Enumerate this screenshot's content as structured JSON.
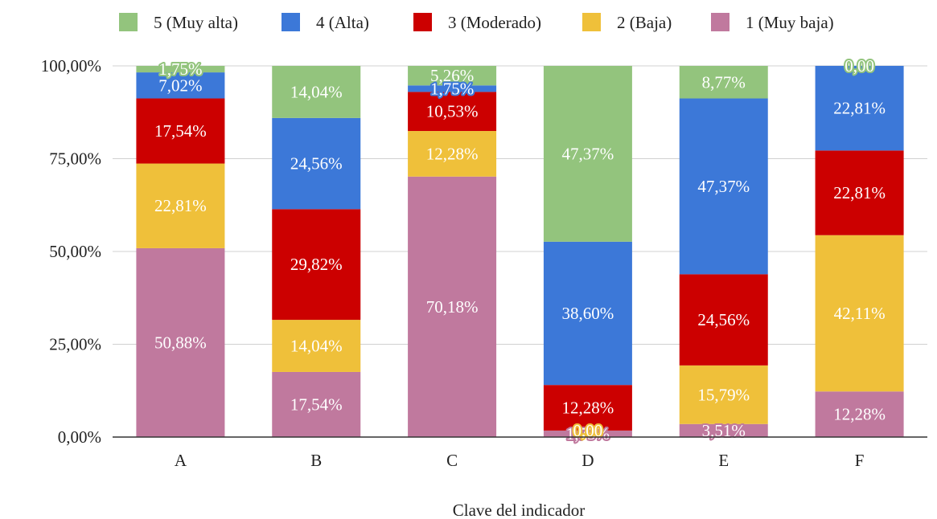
{
  "chart_data": {
    "type": "bar",
    "stacked": true,
    "normalized": true,
    "xlabel": "Clave del indicador",
    "ylabel": "",
    "ylim": [
      0,
      100
    ],
    "y_ticks": [
      "0,00%",
      "25,00%",
      "50,00%",
      "75,00%",
      "100,00%"
    ],
    "grid": true,
    "legend_position": "top",
    "categories": [
      "A",
      "B",
      "C",
      "D",
      "E",
      "F"
    ],
    "series": [
      {
        "name": "1 (Muy baja)",
        "color": "#c0799e",
        "values": [
          50.88,
          17.54,
          70.18,
          1.75,
          3.51,
          12.28
        ],
        "labels": [
          "50,88%",
          "17,54%",
          "70,18%",
          "1,75%",
          "3,51%",
          "12,28%"
        ]
      },
      {
        "name": "2 (Baja)",
        "color": "#efc03a",
        "values": [
          22.81,
          14.04,
          12.28,
          0.0,
          15.79,
          42.11
        ],
        "labels": [
          "22,81%",
          "14,04%",
          "12,28%",
          "0,00",
          "15,79%",
          "42,11%"
        ]
      },
      {
        "name": "3 (Moderado)",
        "color": "#cc0000",
        "values": [
          17.54,
          29.82,
          10.53,
          12.28,
          24.56,
          22.81
        ],
        "labels": [
          "17,54%",
          "29,82%",
          "10,53%",
          "12,28%",
          "24,56%",
          "22,81%"
        ]
      },
      {
        "name": "4 (Alta)",
        "color": "#3c78d8",
        "values": [
          7.02,
          24.56,
          1.75,
          38.6,
          47.37,
          22.81
        ],
        "labels": [
          "7,02%",
          "24,56%",
          "1,75%",
          "38,60%",
          "47,37%",
          "22,81%"
        ]
      },
      {
        "name": "5 (Muy alta)",
        "color": "#93c47d",
        "values": [
          1.75,
          14.04,
          5.26,
          47.37,
          8.77,
          0.0
        ],
        "labels": [
          "1,75%",
          "14,04%",
          "5,26%",
          "47,37%",
          "8,77%",
          "0,00"
        ]
      }
    ]
  }
}
